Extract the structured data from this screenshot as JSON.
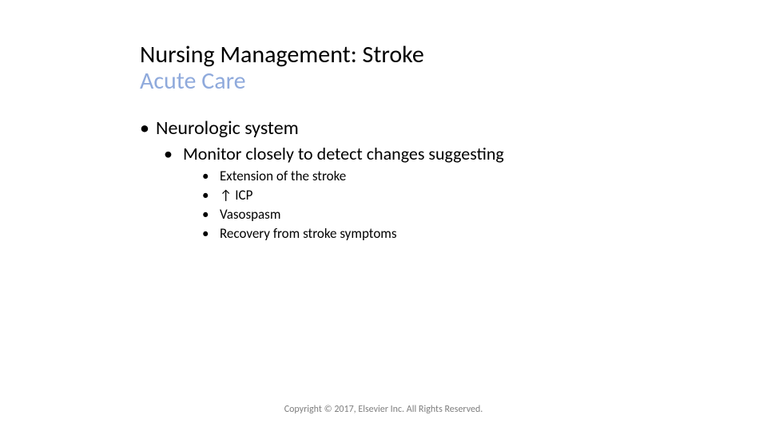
{
  "title": {
    "main": "Nursing Management: Stroke",
    "sub": "Acute Care",
    "main_color": "#000000",
    "sub_color": "#8faadc",
    "fontsize": 30
  },
  "bullets": {
    "l1": {
      "text": "Neurologic system",
      "fontsize": 24
    },
    "l2": {
      "text": "Monitor closely to detect changes suggesting",
      "fontsize": 22
    },
    "l3_items": [
      "Extension of the stroke",
      "↑ ICP",
      "Vasospasm",
      "Recovery from stroke symptoms"
    ],
    "l3_fontsize": 17
  },
  "footer": {
    "text": "Copyright © 2017, Elsevier Inc. All Rights Reserved.",
    "color": "#7f7f7f",
    "fontsize": 12
  },
  "layout": {
    "slide_width": 960,
    "slide_height": 540,
    "background_color": "#ffffff"
  }
}
